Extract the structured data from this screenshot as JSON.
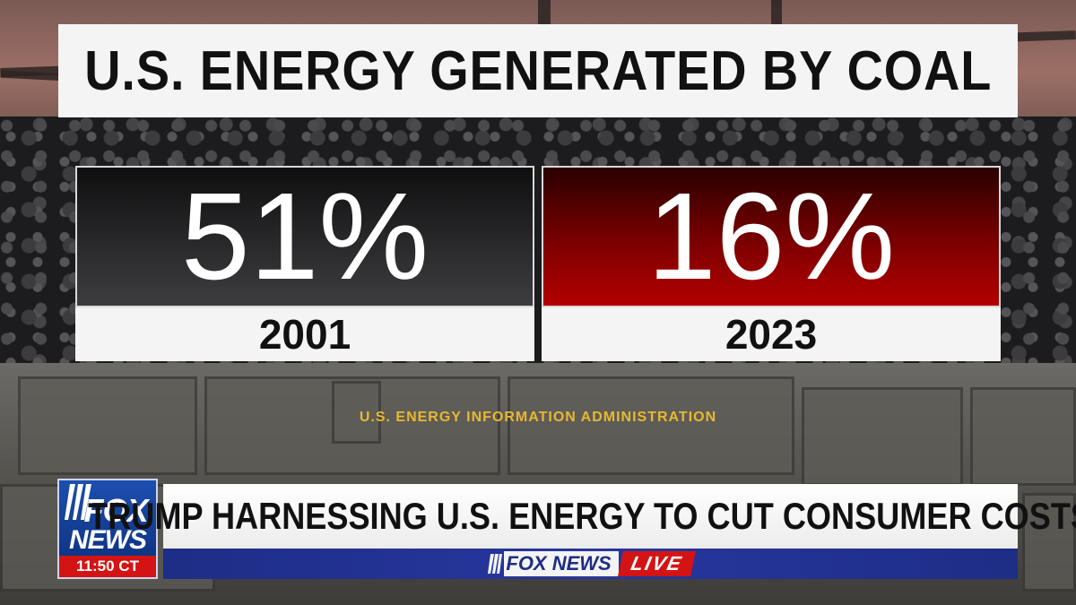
{
  "headline": {
    "title": "U.S. ENERGY GENERATED BY COAL"
  },
  "stats": [
    {
      "value": "51%",
      "year": "2001",
      "color": "#2b2b2d"
    },
    {
      "value": "16%",
      "year": "2023",
      "color": "#b30000"
    }
  ],
  "source": "U.S. ENERGY INFORMATION ADMINISTRATION",
  "lower_third": {
    "logo_top": "FOX",
    "logo_bottom": "NEWS",
    "time": "11:50 CT",
    "chyron": "TRUMP HARNESSING U.S. ENERGY TO CUT CONSUMER COSTS",
    "ticker_brand": "FOX NEWS",
    "ticker_live": "LIVE"
  },
  "colors": {
    "brand_blue": "#1e2d86",
    "live_red": "#d41414",
    "source_gold": "#e8b830"
  }
}
